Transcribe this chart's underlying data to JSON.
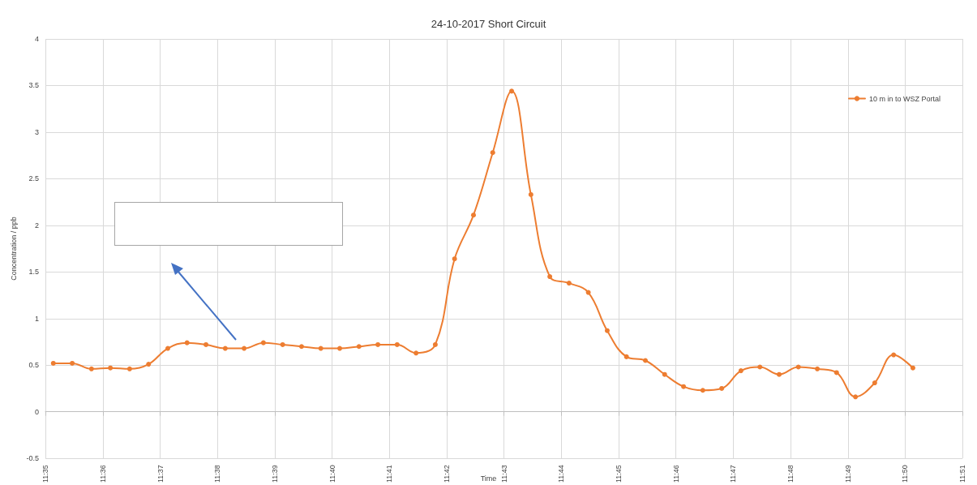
{
  "chart_data": {
    "type": "line",
    "title": "24-10-2017 Short Circuit",
    "xlabel": "Time",
    "ylabel": "Concentration / ppb",
    "series": [
      {
        "name": "10 m in to WSZ Portal",
        "color": "#ed7d31",
        "x": [
          11.5856,
          11.5911,
          11.5967,
          11.6022,
          11.6078,
          11.6133,
          11.6189,
          11.6245,
          11.63,
          11.6356,
          11.6411,
          11.6467,
          11.6523,
          11.6578,
          11.6634,
          11.6689,
          11.6745,
          11.68,
          11.6856,
          11.6911,
          11.6967,
          11.7023,
          11.7078,
          11.7134,
          11.7189,
          11.7245,
          11.73,
          11.7356,
          11.7412,
          11.7467,
          11.7523,
          11.7578,
          11.7634,
          11.7689,
          11.7745,
          11.78,
          11.7856,
          11.7911,
          11.7967,
          11.8023,
          11.8078,
          11.8134,
          11.8189,
          11.8245,
          11.83,
          11.8356
        ],
        "values": [
          0.52,
          0.52,
          0.46,
          0.47,
          0.46,
          0.51,
          0.68,
          0.74,
          0.72,
          0.68,
          0.68,
          0.74,
          0.72,
          0.7,
          0.68,
          0.68,
          0.7,
          0.72,
          0.72,
          0.63,
          0.72,
          1.64,
          2.11,
          2.78,
          3.44,
          2.33,
          1.45,
          1.38,
          1.28,
          0.87,
          0.59,
          0.55,
          0.4,
          0.27,
          0.23,
          0.25,
          0.44,
          0.48,
          0.4,
          0.48,
          0.46,
          0.42,
          0.16,
          0.31,
          0.61,
          0.47
        ]
      }
    ],
    "xlim": [
      11.5833,
      11.85
    ],
    "xticks": [
      {
        "value": 11.5833,
        "label": "11:35"
      },
      {
        "value": 11.6,
        "label": "11:36"
      },
      {
        "value": 11.6167,
        "label": "11:37"
      },
      {
        "value": 11.6333,
        "label": "11:38"
      },
      {
        "value": 11.65,
        "label": "11:39"
      },
      {
        "value": 11.6667,
        "label": "11:40"
      },
      {
        "value": 11.6833,
        "label": "11:41"
      },
      {
        "value": 11.7,
        "label": "11:42"
      },
      {
        "value": 11.7167,
        "label": "11:43"
      },
      {
        "value": 11.7333,
        "label": "11:44"
      },
      {
        "value": 11.75,
        "label": "11:45"
      },
      {
        "value": 11.7667,
        "label": "11:46"
      },
      {
        "value": 11.7833,
        "label": "11:47"
      },
      {
        "value": 11.8,
        "label": "11:48"
      },
      {
        "value": 11.8167,
        "label": "11:49"
      },
      {
        "value": 11.8333,
        "label": "11:50"
      },
      {
        "value": 11.85,
        "label": "11:51"
      }
    ],
    "ylim": [
      -0.5,
      4
    ],
    "yticks": [
      -0.5,
      0,
      0.5,
      1,
      1.5,
      2,
      2.5,
      3,
      3.5,
      4
    ],
    "grid": true,
    "legend": "top right",
    "marker": "circle",
    "line_style": "solid"
  }
}
